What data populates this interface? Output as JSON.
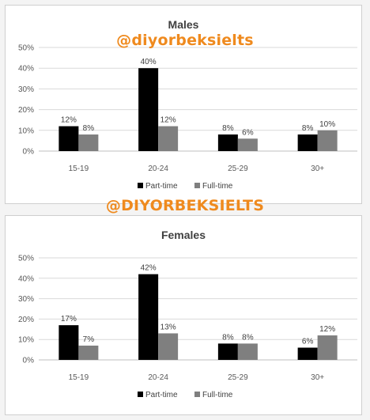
{
  "watermarks": {
    "top": "@diyorbeksielts",
    "middle": "@DIYORBEKSIELTS"
  },
  "chart_data": [
    {
      "type": "bar",
      "title": "Males",
      "categories": [
        "15-19",
        "20-24",
        "25-29",
        "30+"
      ],
      "series": [
        {
          "name": "Part-time",
          "values": [
            12,
            40,
            8,
            8
          ],
          "labels": [
            "12%",
            "40%",
            "8%",
            "8%"
          ],
          "color": "#000000"
        },
        {
          "name": "Full-time",
          "values": [
            8,
            12,
            6,
            10
          ],
          "labels": [
            "8%",
            "12%",
            "6%",
            "10%"
          ],
          "color": "#7f7f7f"
        }
      ],
      "ylim": [
        0,
        50
      ],
      "yticks": [
        "0%",
        "10%",
        "20%",
        "30%",
        "40%",
        "50%"
      ],
      "grid": true,
      "legend": "bottom"
    },
    {
      "type": "bar",
      "title": "Females",
      "categories": [
        "15-19",
        "20-24",
        "25-29",
        "30+"
      ],
      "series": [
        {
          "name": "Part-time",
          "values": [
            17,
            42,
            8,
            6
          ],
          "labels": [
            "17%",
            "42%",
            "8%",
            "6%"
          ],
          "color": "#000000"
        },
        {
          "name": "Full-time",
          "values": [
            7,
            13,
            8,
            12
          ],
          "labels": [
            "7%",
            "13%",
            "8%",
            "12%"
          ],
          "color": "#7f7f7f"
        }
      ],
      "ylim": [
        0,
        50
      ],
      "yticks": [
        "0%",
        "10%",
        "20%",
        "30%",
        "40%",
        "50%"
      ],
      "grid": true,
      "legend": "bottom"
    }
  ]
}
